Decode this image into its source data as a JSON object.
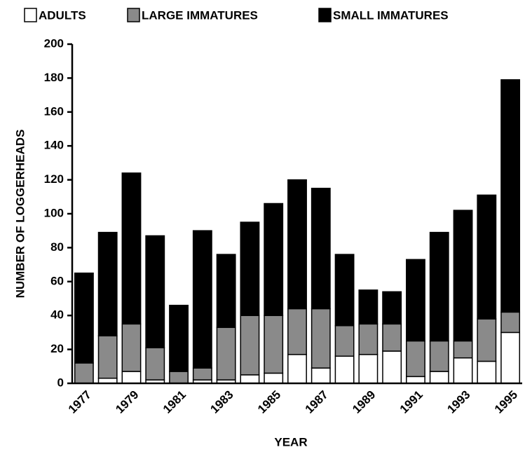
{
  "chart_data": {
    "type": "stacked-bar",
    "x_label": "YEAR",
    "y_label": "NUMBER OF LOGGERHEADS",
    "categories": [
      "1977",
      null,
      "1979",
      null,
      "1981",
      null,
      "1983",
      null,
      "1985",
      null,
      "1987",
      null,
      "1989",
      null,
      "1991",
      null,
      "1993",
      null,
      "1995"
    ],
    "series": [
      {
        "name": "ADULTS",
        "color": "#ffffff",
        "values": [
          0,
          3,
          7,
          2,
          0,
          2,
          2,
          5,
          6,
          17,
          9,
          16,
          17,
          19,
          4,
          7,
          15,
          13,
          30
        ]
      },
      {
        "name": "LARGE IMMATURES",
        "color": "#8a8a8a",
        "values": [
          12,
          25,
          28,
          19,
          7,
          7,
          31,
          35,
          34,
          27,
          35,
          18,
          18,
          16,
          21,
          18,
          10,
          25,
          12
        ]
      },
      {
        "name": "SMALL IMMATURES",
        "color": "#000000",
        "values": [
          53,
          61,
          89,
          66,
          39,
          81,
          43,
          55,
          66,
          76,
          71,
          42,
          20,
          19,
          48,
          64,
          77,
          73,
          137
        ]
      }
    ],
    "ylim": [
      0,
      200
    ],
    "yticks": [
      0,
      20,
      40,
      60,
      80,
      100,
      120,
      140,
      160,
      180,
      200
    ],
    "grid": false
  }
}
